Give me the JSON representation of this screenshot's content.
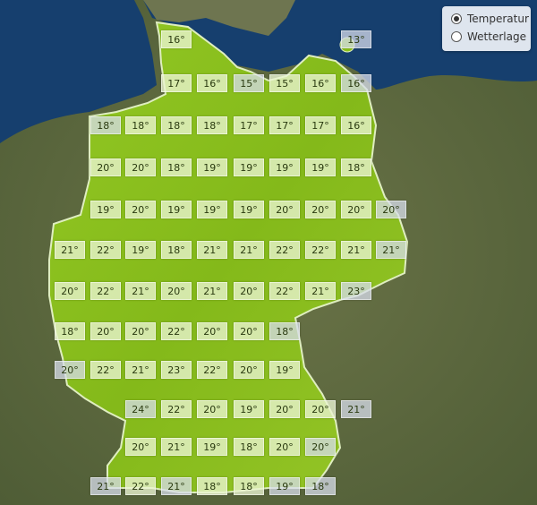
{
  "legend": {
    "selected": "Temperatur",
    "options": [
      {
        "label": "Temperatur",
        "checked": true
      },
      {
        "label": "Wetterlage",
        "checked": false
      }
    ]
  },
  "colors": {
    "sea": "#163f6e",
    "land": "#5a6a3c",
    "germany": "#8cc21c"
  },
  "unit": "°",
  "temperature_grid": [
    [
      null,
      null,
      null,
      16,
      null,
      null,
      null,
      null,
      13,
      null
    ],
    [
      null,
      null,
      null,
      17,
      16,
      15,
      15,
      16,
      16,
      null
    ],
    [
      null,
      18,
      18,
      18,
      18,
      17,
      17,
      17,
      16,
      null
    ],
    [
      null,
      20,
      20,
      18,
      19,
      19,
      19,
      19,
      18,
      null
    ],
    [
      null,
      19,
      20,
      19,
      19,
      19,
      20,
      20,
      20,
      20
    ],
    [
      21,
      22,
      19,
      18,
      21,
      21,
      22,
      22,
      21,
      21
    ],
    [
      20,
      22,
      21,
      20,
      21,
      20,
      22,
      21,
      23,
      null
    ],
    [
      18,
      20,
      20,
      22,
      20,
      20,
      18,
      null,
      null,
      null
    ],
    [
      20,
      22,
      21,
      23,
      22,
      20,
      19,
      null,
      null,
      null
    ],
    [
      null,
      null,
      24,
      22,
      20,
      19,
      20,
      20,
      21,
      null
    ],
    [
      null,
      null,
      20,
      21,
      19,
      18,
      20,
      20,
      null,
      null
    ],
    [
      null,
      21,
      22,
      21,
      18,
      18,
      19,
      18,
      null,
      null
    ]
  ]
}
